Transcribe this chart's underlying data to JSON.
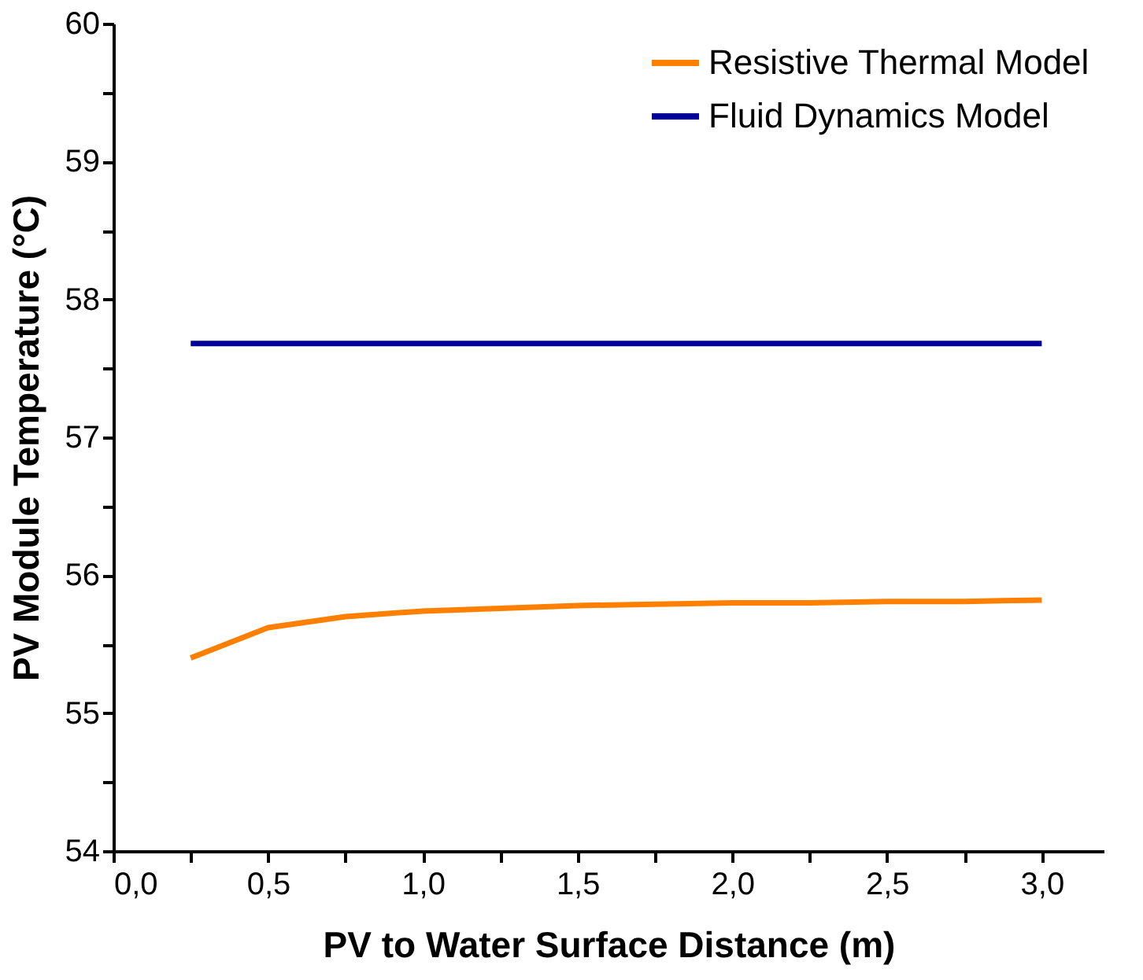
{
  "chart_data": {
    "type": "line",
    "xlabel": "PV to Water Surface Distance (m)",
    "ylabel": "PV Module Temperature (°C)",
    "x": [
      0.25,
      0.5,
      0.75,
      1.0,
      1.25,
      1.5,
      1.75,
      2.0,
      2.25,
      2.5,
      2.75,
      3.0
    ],
    "series": [
      {
        "name": "Resistive Thermal Model",
        "color": "#ff8000",
        "values": [
          55.4,
          55.62,
          55.7,
          55.74,
          55.76,
          55.78,
          55.79,
          55.8,
          55.8,
          55.81,
          55.81,
          55.82
        ]
      },
      {
        "name": "Fluid Dynamics Model",
        "color": "#000099",
        "values": [
          57.68,
          57.68,
          57.68,
          57.68,
          57.68,
          57.68,
          57.68,
          57.68,
          57.68,
          57.68,
          57.68,
          57.68
        ]
      }
    ],
    "xlim": [
      0,
      3.2
    ],
    "xticks": [
      {
        "value": 0,
        "label": "0,0"
      },
      {
        "value": 0.25,
        "label": null
      },
      {
        "value": 0.5,
        "label": "0,5"
      },
      {
        "value": 0.75,
        "label": null
      },
      {
        "value": 1.0,
        "label": "1,0"
      },
      {
        "value": 1.25,
        "label": null
      },
      {
        "value": 1.5,
        "label": "1,5"
      },
      {
        "value": 1.75,
        "label": null
      },
      {
        "value": 2.0,
        "label": "2,0"
      },
      {
        "value": 2.25,
        "label": null
      },
      {
        "value": 2.5,
        "label": "2,5"
      },
      {
        "value": 2.75,
        "label": null
      },
      {
        "value": 3.0,
        "label": "3,0"
      }
    ],
    "ylim": [
      54,
      60
    ],
    "yticks": [
      54,
      {
        "value": 54.5,
        "label": null
      },
      55,
      {
        "value": 55.5,
        "label": null
      },
      56,
      {
        "value": 56.5,
        "label": null
      },
      57,
      {
        "value": 57.5,
        "label": null
      },
      58,
      {
        "value": 58.5,
        "label": null
      },
      59,
      {
        "value": 59.5,
        "label": null
      },
      60
    ],
    "grid": false,
    "legend": "top right",
    "marker": "none",
    "line_style": "solid"
  }
}
